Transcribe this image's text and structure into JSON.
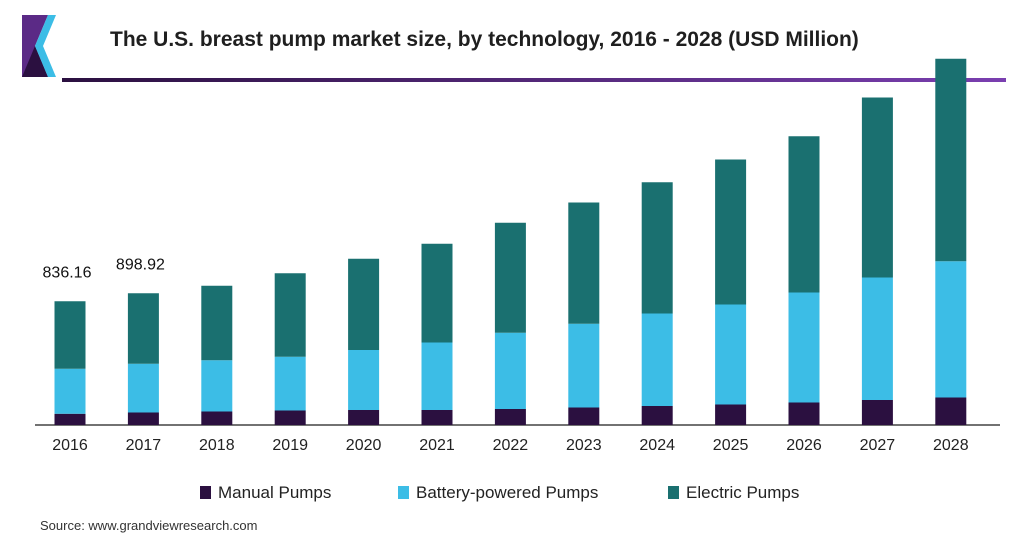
{
  "title": "The U.S. breast pump market size, by technology, 2016 - 2028 (USD Million)",
  "source": "Source: www.grandviewresearch.com",
  "colors": {
    "brand": "#5b2a86",
    "manual": "#2b1040",
    "battery": "#3cbde6",
    "electric": "#1a7070",
    "axis": "#444444"
  },
  "chart_data": {
    "type": "bar",
    "stacked": true,
    "categories": [
      "2016",
      "2017",
      "2018",
      "2019",
      "2020",
      "2021",
      "2022",
      "2023",
      "2024",
      "2025",
      "2026",
      "2027",
      "2028"
    ],
    "series": [
      {
        "name": "Manual Pumps",
        "color": "#2b1040",
        "values": [
          45,
          50,
          54,
          58,
          60,
          60,
          64,
          70,
          76,
          82,
          90,
          100,
          110
        ]
      },
      {
        "name": "Battery-powered Pumps",
        "color": "#3cbde6",
        "values": [
          180,
          195,
          205,
          215,
          240,
          270,
          305,
          335,
          370,
          400,
          440,
          490,
          545
        ]
      },
      {
        "name": "Electric Pumps",
        "color": "#1a7070",
        "values": [
          270,
          282,
          298,
          334,
          365,
          395,
          440,
          485,
          525,
          580,
          625,
          720,
          810
        ]
      }
    ],
    "data_labels": [
      {
        "category": "2016",
        "text": "836.16"
      },
      {
        "category": "2017",
        "text": "898.92"
      }
    ],
    "legend_position": "bottom",
    "grid": false,
    "ylim": [
      0,
      1700
    ],
    "y_axis_visible": false
  }
}
